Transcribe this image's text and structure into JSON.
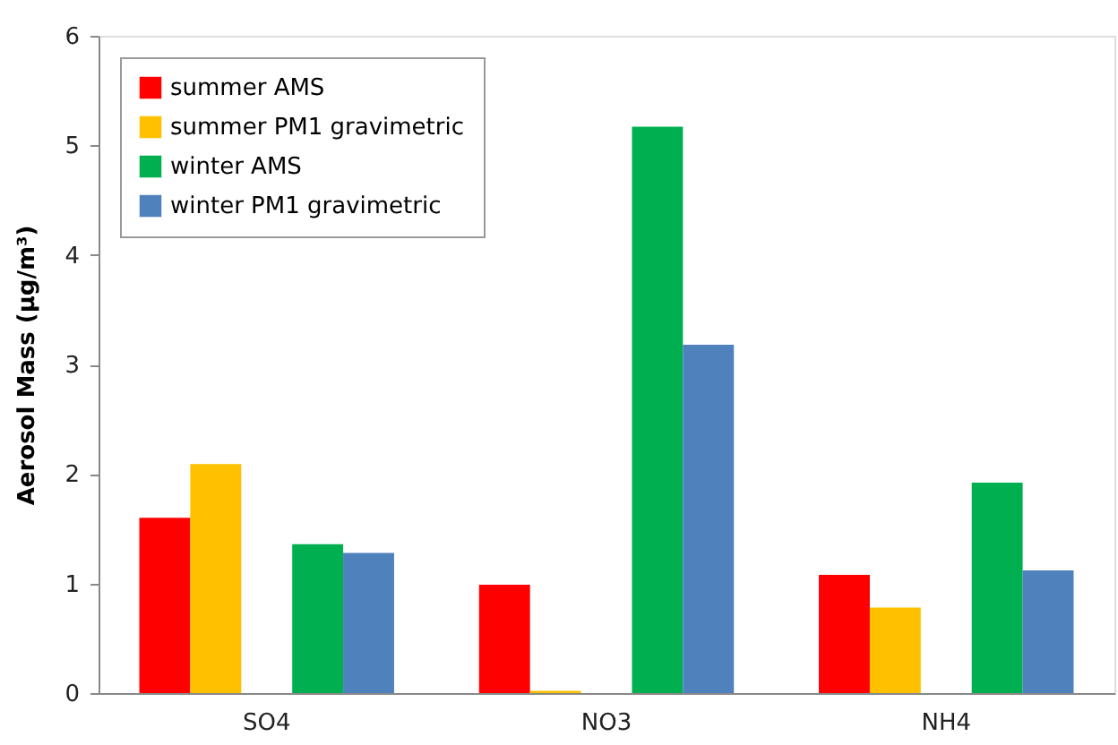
{
  "chart_data": {
    "type": "bar",
    "ylabel": "Aerosol Mass (µg/m³)",
    "categories": [
      "SO4",
      "NO3",
      "NH4"
    ],
    "series": [
      {
        "name": "summer AMS",
        "color": "#ff0000",
        "values": [
          1.6,
          0.99,
          1.08
        ]
      },
      {
        "name": "summer PM1 gravimetric",
        "color": "#ffc000",
        "values": [
          2.09,
          0.02,
          0.78
        ]
      },
      {
        "name": "winter AMS",
        "color": "#00b050",
        "values": [
          1.36,
          5.17,
          1.92
        ]
      },
      {
        "name": "winter PM1 gravimetric",
        "color": "#4f81bd",
        "values": [
          1.28,
          3.18,
          1.12
        ]
      }
    ],
    "ylim": [
      0,
      6
    ],
    "yticks": [
      0,
      1,
      2,
      3,
      4,
      5,
      6
    ],
    "grid": false,
    "legend": "top left"
  }
}
